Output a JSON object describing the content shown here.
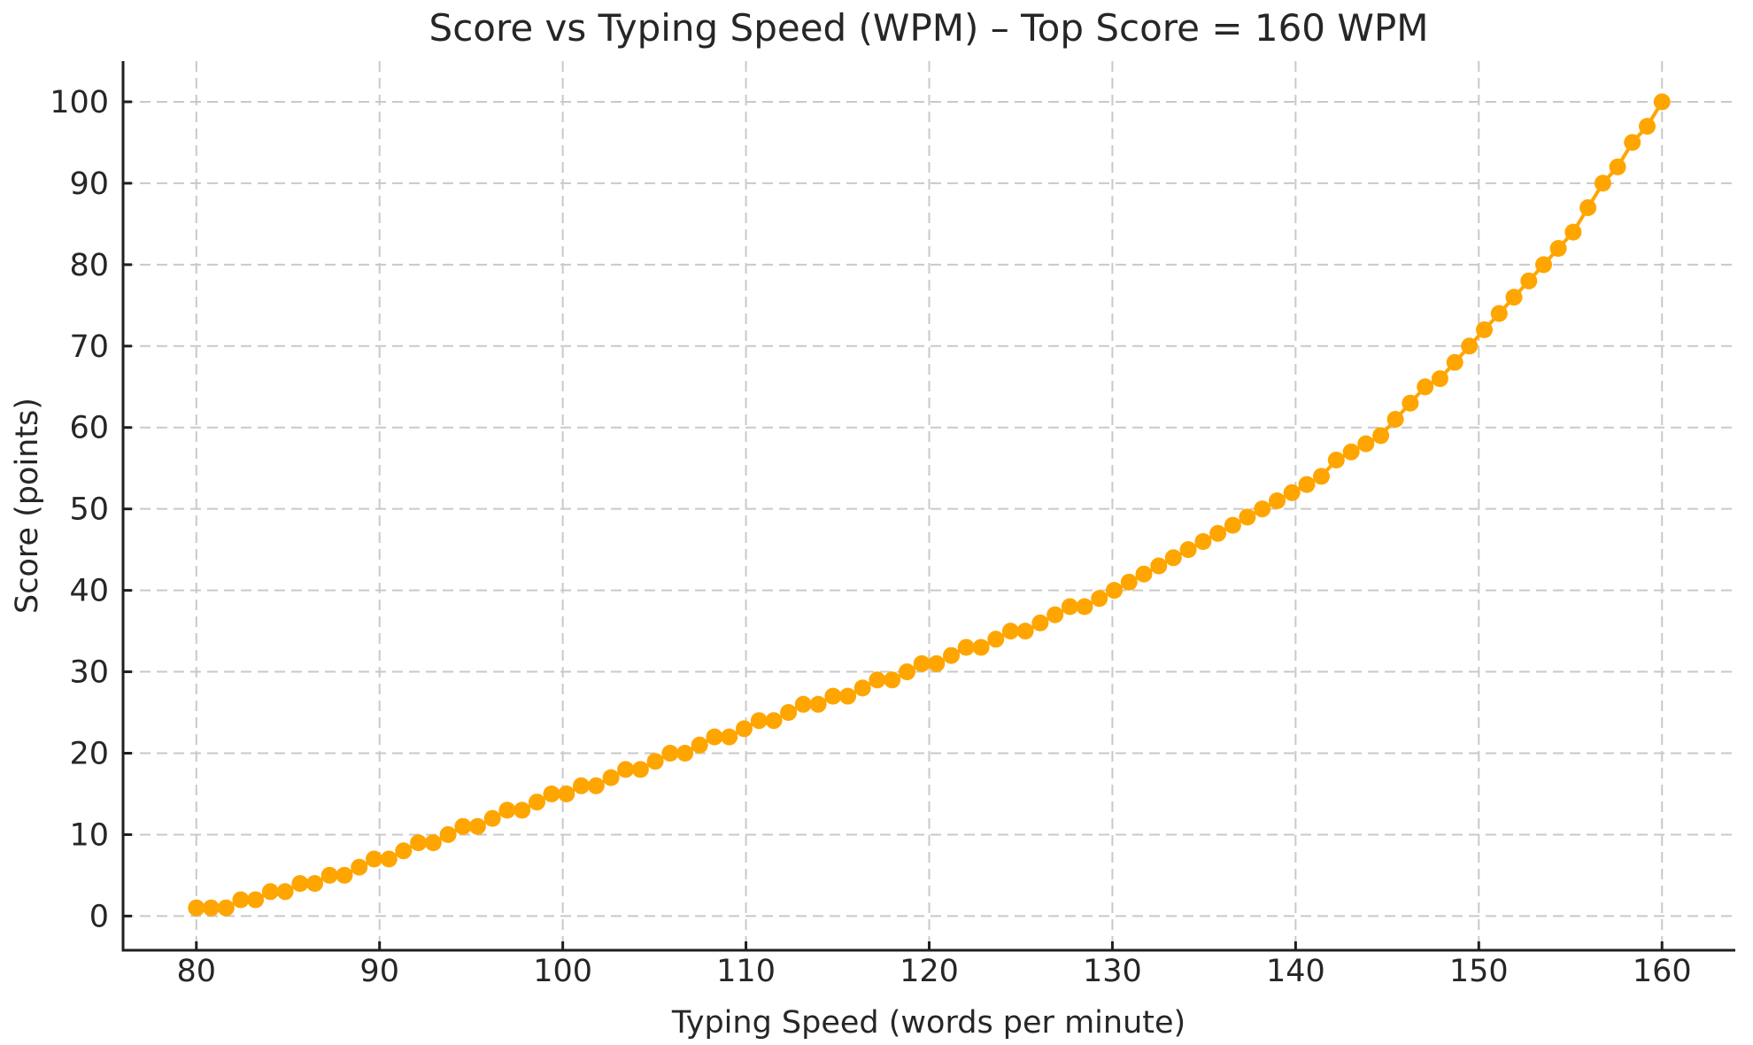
{
  "figure": {
    "background": "#ffffff",
    "text_color": "#262626"
  },
  "chart_data": {
    "type": "scatter",
    "title": "Score vs Typing Speed (WPM) – Top Score = 160 WPM",
    "xlabel": "Typing Speed (words per minute)",
    "ylabel": "Score (points)",
    "legend": "none",
    "grid": true,
    "grid_style": "dashed",
    "grid_color": "#c9c9c9",
    "marker_color": "#FFA500",
    "line_color": "#FFA500",
    "spine_color": "#1f1f1f",
    "xlim": [
      76,
      164
    ],
    "ylim": [
      -4.2,
      105
    ],
    "xticks": [
      80,
      90,
      100,
      110,
      120,
      130,
      140,
      150,
      160
    ],
    "yticks": [
      0,
      10,
      20,
      30,
      40,
      50,
      60,
      70,
      80,
      90,
      100
    ],
    "x": [
      80.0,
      80.81,
      81.62,
      82.42,
      83.23,
      84.04,
      84.85,
      85.66,
      86.46,
      87.27,
      88.08,
      88.89,
      89.7,
      90.51,
      91.31,
      92.12,
      92.93,
      93.74,
      94.55,
      95.35,
      96.16,
      96.97,
      97.78,
      98.59,
      99.39,
      100.2,
      101.01,
      101.82,
      102.63,
      103.43,
      104.24,
      105.05,
      105.86,
      106.67,
      107.47,
      108.28,
      109.09,
      109.9,
      110.71,
      111.52,
      112.32,
      113.13,
      113.94,
      114.75,
      115.56,
      116.36,
      117.17,
      117.98,
      118.79,
      119.6,
      120.4,
      121.21,
      122.02,
      122.83,
      123.64,
      124.44,
      125.25,
      126.06,
      126.87,
      127.68,
      128.48,
      129.29,
      130.1,
      130.91,
      131.72,
      132.53,
      133.33,
      134.14,
      134.95,
      135.76,
      136.57,
      137.37,
      138.18,
      138.99,
      139.8,
      140.61,
      141.41,
      142.22,
      143.03,
      143.84,
      144.65,
      145.45,
      146.26,
      147.07,
      147.88,
      148.69,
      149.49,
      150.3,
      151.11,
      151.92,
      152.73,
      153.54,
      154.34,
      155.15,
      155.96,
      156.77,
      157.58,
      158.38,
      159.19,
      160.0
    ],
    "y": [
      1,
      1,
      1,
      2,
      2,
      3,
      3,
      4,
      4,
      5,
      5,
      6,
      7,
      7,
      8,
      9,
      9,
      10,
      11,
      11,
      12,
      13,
      13,
      14,
      15,
      15,
      16,
      16,
      17,
      18,
      18,
      19,
      20,
      20,
      21,
      22,
      22,
      23,
      24,
      24,
      25,
      26,
      26,
      27,
      27,
      28,
      29,
      29,
      30,
      31,
      31,
      32,
      33,
      33,
      34,
      35,
      35,
      36,
      37,
      38,
      38,
      39,
      40,
      41,
      42,
      43,
      44,
      45,
      46,
      47,
      48,
      49,
      50,
      51,
      52,
      53,
      54,
      56,
      57,
      58,
      59,
      61,
      63,
      65,
      66,
      68,
      70,
      72,
      74,
      76,
      78,
      80,
      82,
      84,
      87,
      90,
      92,
      95,
      97,
      100
    ]
  }
}
